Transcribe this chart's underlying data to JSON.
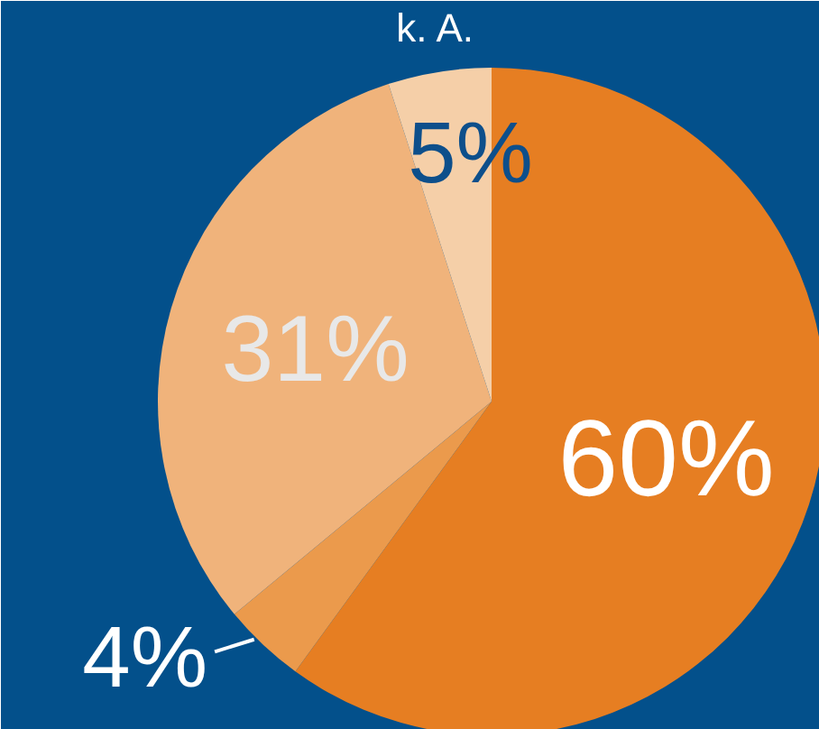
{
  "chart_data": {
    "type": "pie",
    "categories": [
      null,
      null,
      null,
      "k. A."
    ],
    "values": [
      60,
      4,
      31,
      5
    ],
    "colors": [
      "#e67e22",
      "#eb9a4c",
      "#f0b37b",
      "#f5cfa8"
    ],
    "value_labels": [
      "60%",
      "4%",
      "31%",
      "5%"
    ]
  }
}
